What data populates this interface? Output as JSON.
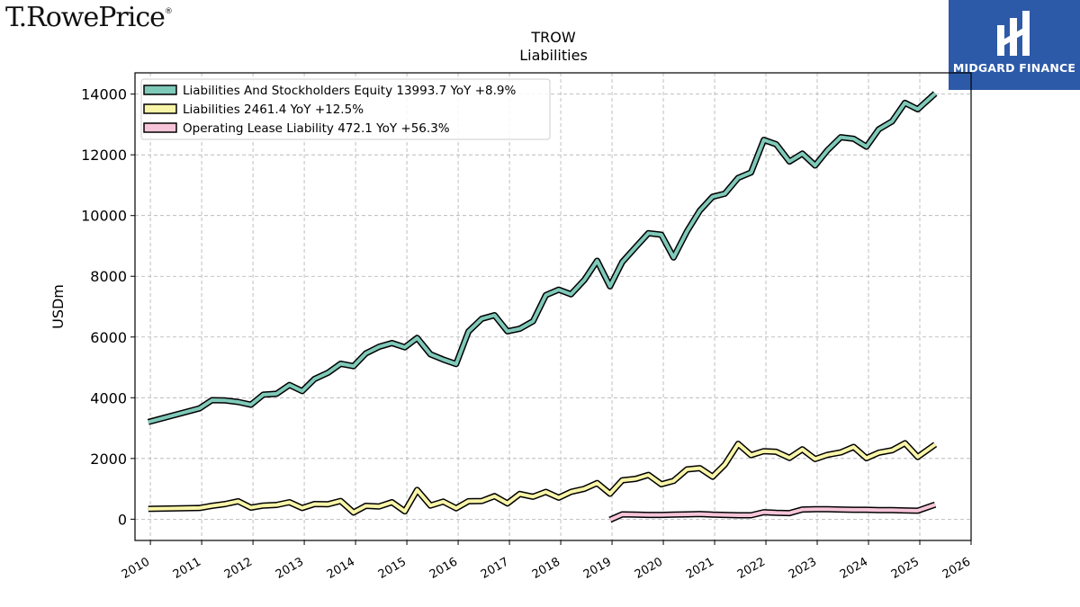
{
  "branding": {
    "left_logo": "T.RowePrice",
    "left_logo_mark": "®",
    "right_logo": "MIDGARD FINANCE"
  },
  "colors": {
    "series_1": "#7fc9b9",
    "series_2": "#f8f5a8",
    "series_3": "#f7c5d8",
    "brand_blue": "#2d5aa8"
  },
  "chart_data": {
    "type": "line",
    "title": "TROW",
    "subtitle": "Liabilities",
    "xlabel": "",
    "ylabel": "USDm",
    "xlim": [
      2009.7,
      2026.0
    ],
    "ylim": [
      -700,
      14700
    ],
    "x_ticks": [
      "2010",
      "2011",
      "2012",
      "2013",
      "2014",
      "2015",
      "2016",
      "2017",
      "2018",
      "2019",
      "2020",
      "2021",
      "2022",
      "2023",
      "2024",
      "2025",
      "2026"
    ],
    "y_ticks": [
      "0",
      "2000",
      "4000",
      "6000",
      "8000",
      "10000",
      "12000",
      "14000"
    ],
    "grid": true,
    "legend_position": "top-left",
    "series": [
      {
        "name": "Liabilities And Stockholders Equity",
        "legend_label": "Liabilities And Stockholders Equity  13993.7 YoY +8.9%",
        "color_key": "series_1",
        "points": [
          [
            2009.96,
            3200
          ],
          [
            2010.96,
            3650
          ],
          [
            2011.2,
            3920
          ],
          [
            2011.46,
            3910
          ],
          [
            2011.71,
            3860
          ],
          [
            2011.96,
            3770
          ],
          [
            2012.2,
            4100
          ],
          [
            2012.46,
            4130
          ],
          [
            2012.71,
            4420
          ],
          [
            2012.96,
            4220
          ],
          [
            2013.2,
            4620
          ],
          [
            2013.46,
            4820
          ],
          [
            2013.71,
            5120
          ],
          [
            2013.96,
            5040
          ],
          [
            2014.2,
            5460
          ],
          [
            2014.46,
            5680
          ],
          [
            2014.71,
            5800
          ],
          [
            2014.96,
            5660
          ],
          [
            2015.2,
            5970
          ],
          [
            2015.46,
            5430
          ],
          [
            2015.71,
            5260
          ],
          [
            2015.96,
            5110
          ],
          [
            2016.2,
            6180
          ],
          [
            2016.46,
            6600
          ],
          [
            2016.71,
            6720
          ],
          [
            2016.96,
            6190
          ],
          [
            2017.2,
            6270
          ],
          [
            2017.46,
            6520
          ],
          [
            2017.71,
            7380
          ],
          [
            2017.96,
            7560
          ],
          [
            2018.2,
            7410
          ],
          [
            2018.46,
            7880
          ],
          [
            2018.71,
            8510
          ],
          [
            2018.96,
            7670
          ],
          [
            2019.2,
            8470
          ],
          [
            2019.46,
            8960
          ],
          [
            2019.71,
            9420
          ],
          [
            2019.96,
            9370
          ],
          [
            2020.2,
            8620
          ],
          [
            2020.46,
            9480
          ],
          [
            2020.71,
            10160
          ],
          [
            2020.96,
            10620
          ],
          [
            2021.2,
            10720
          ],
          [
            2021.46,
            11240
          ],
          [
            2021.71,
            11420
          ],
          [
            2021.96,
            12490
          ],
          [
            2022.2,
            12350
          ],
          [
            2022.46,
            11780
          ],
          [
            2022.71,
            12040
          ],
          [
            2022.96,
            11650
          ],
          [
            2023.2,
            12150
          ],
          [
            2023.46,
            12580
          ],
          [
            2023.71,
            12530
          ],
          [
            2023.96,
            12270
          ],
          [
            2024.2,
            12840
          ],
          [
            2024.46,
            13100
          ],
          [
            2024.71,
            13710
          ],
          [
            2024.96,
            13500
          ],
          [
            2025.3,
            14020
          ]
        ]
      },
      {
        "name": "Liabilities",
        "legend_label": "Liabilities  2461.4 YoY +12.5%",
        "color_key": "series_2",
        "points": [
          [
            2009.96,
            340
          ],
          [
            2010.96,
            370
          ],
          [
            2011.2,
            440
          ],
          [
            2011.46,
            500
          ],
          [
            2011.71,
            590
          ],
          [
            2011.96,
            380
          ],
          [
            2012.2,
            450
          ],
          [
            2012.46,
            470
          ],
          [
            2012.71,
            560
          ],
          [
            2012.96,
            370
          ],
          [
            2013.2,
            500
          ],
          [
            2013.46,
            490
          ],
          [
            2013.71,
            600
          ],
          [
            2013.96,
            220
          ],
          [
            2014.2,
            440
          ],
          [
            2014.46,
            420
          ],
          [
            2014.71,
            560
          ],
          [
            2014.96,
            260
          ],
          [
            2015.2,
            960
          ],
          [
            2015.46,
            450
          ],
          [
            2015.71,
            580
          ],
          [
            2015.96,
            360
          ],
          [
            2016.2,
            590
          ],
          [
            2016.46,
            600
          ],
          [
            2016.71,
            760
          ],
          [
            2016.96,
            520
          ],
          [
            2017.2,
            830
          ],
          [
            2017.46,
            740
          ],
          [
            2017.71,
            900
          ],
          [
            2017.96,
            710
          ],
          [
            2018.2,
            900
          ],
          [
            2018.46,
            1000
          ],
          [
            2018.71,
            1190
          ],
          [
            2018.96,
            840
          ],
          [
            2019.2,
            1280
          ],
          [
            2019.46,
            1330
          ],
          [
            2019.71,
            1460
          ],
          [
            2019.96,
            1150
          ],
          [
            2020.2,
            1260
          ],
          [
            2020.46,
            1640
          ],
          [
            2020.71,
            1680
          ],
          [
            2020.96,
            1400
          ],
          [
            2021.2,
            1800
          ],
          [
            2021.46,
            2480
          ],
          [
            2021.71,
            2110
          ],
          [
            2021.96,
            2240
          ],
          [
            2022.2,
            2220
          ],
          [
            2022.46,
            2020
          ],
          [
            2022.71,
            2300
          ],
          [
            2022.96,
            1980
          ],
          [
            2023.2,
            2120
          ],
          [
            2023.46,
            2200
          ],
          [
            2023.71,
            2380
          ],
          [
            2023.96,
            2010
          ],
          [
            2024.2,
            2190
          ],
          [
            2024.46,
            2270
          ],
          [
            2024.71,
            2500
          ],
          [
            2024.96,
            2050
          ],
          [
            2025.3,
            2460
          ]
        ]
      },
      {
        "name": "Operating Lease Liability",
        "legend_label": "Operating Lease Liability  472.1 YoY +56.3%",
        "color_key": "series_3",
        "points": [
          [
            2018.96,
            -20
          ],
          [
            2019.2,
            160
          ],
          [
            2019.46,
            150
          ],
          [
            2019.71,
            140
          ],
          [
            2019.96,
            140
          ],
          [
            2020.2,
            150
          ],
          [
            2020.46,
            160
          ],
          [
            2020.71,
            170
          ],
          [
            2020.96,
            150
          ],
          [
            2021.2,
            140
          ],
          [
            2021.46,
            130
          ],
          [
            2021.71,
            130
          ],
          [
            2021.96,
            230
          ],
          [
            2022.2,
            210
          ],
          [
            2022.46,
            200
          ],
          [
            2022.71,
            320
          ],
          [
            2022.96,
            330
          ],
          [
            2023.2,
            330
          ],
          [
            2023.46,
            320
          ],
          [
            2023.71,
            310
          ],
          [
            2023.96,
            310
          ],
          [
            2024.2,
            300
          ],
          [
            2024.46,
            300
          ],
          [
            2024.71,
            290
          ],
          [
            2024.96,
            280
          ],
          [
            2025.3,
            480
          ]
        ]
      }
    ]
  }
}
